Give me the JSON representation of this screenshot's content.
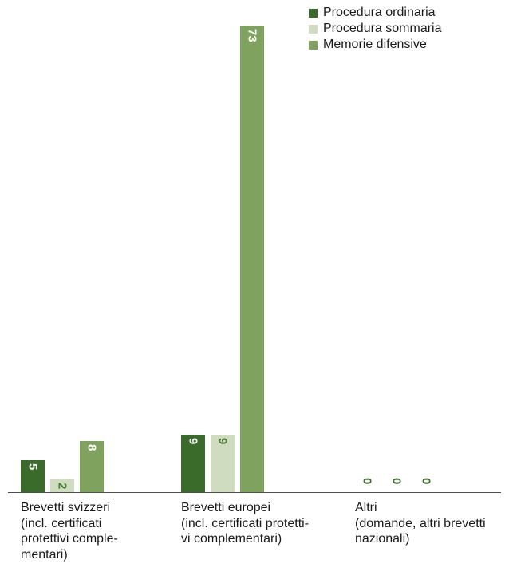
{
  "chart_data": {
    "type": "bar",
    "categories": [
      "Brevetti svizzeri\n(incl. certificati\nprotettivi comple-\nmentari)",
      "Brevetti europei\n(incl. certificati protetti-\nvi complementari)",
      "Altri\n(domande, altri brevetti\nnazionali)"
    ],
    "series": [
      {
        "name": "Procedura ordinaria",
        "color": "#3a6b2a",
        "values": [
          5,
          9,
          0
        ]
      },
      {
        "name": "Procedura sommaria",
        "color": "#cfdcbf",
        "values": [
          2,
          9,
          0
        ]
      },
      {
        "name": "Memorie difensive",
        "color": "#7fa35f",
        "values": [
          8,
          73,
          0
        ]
      }
    ],
    "ylim": [
      0,
      76
    ],
    "grid": false,
    "legend_position": "top-right",
    "value_labels": "inside-bar-rotated",
    "zero_label_color": "#3a6b2a"
  }
}
